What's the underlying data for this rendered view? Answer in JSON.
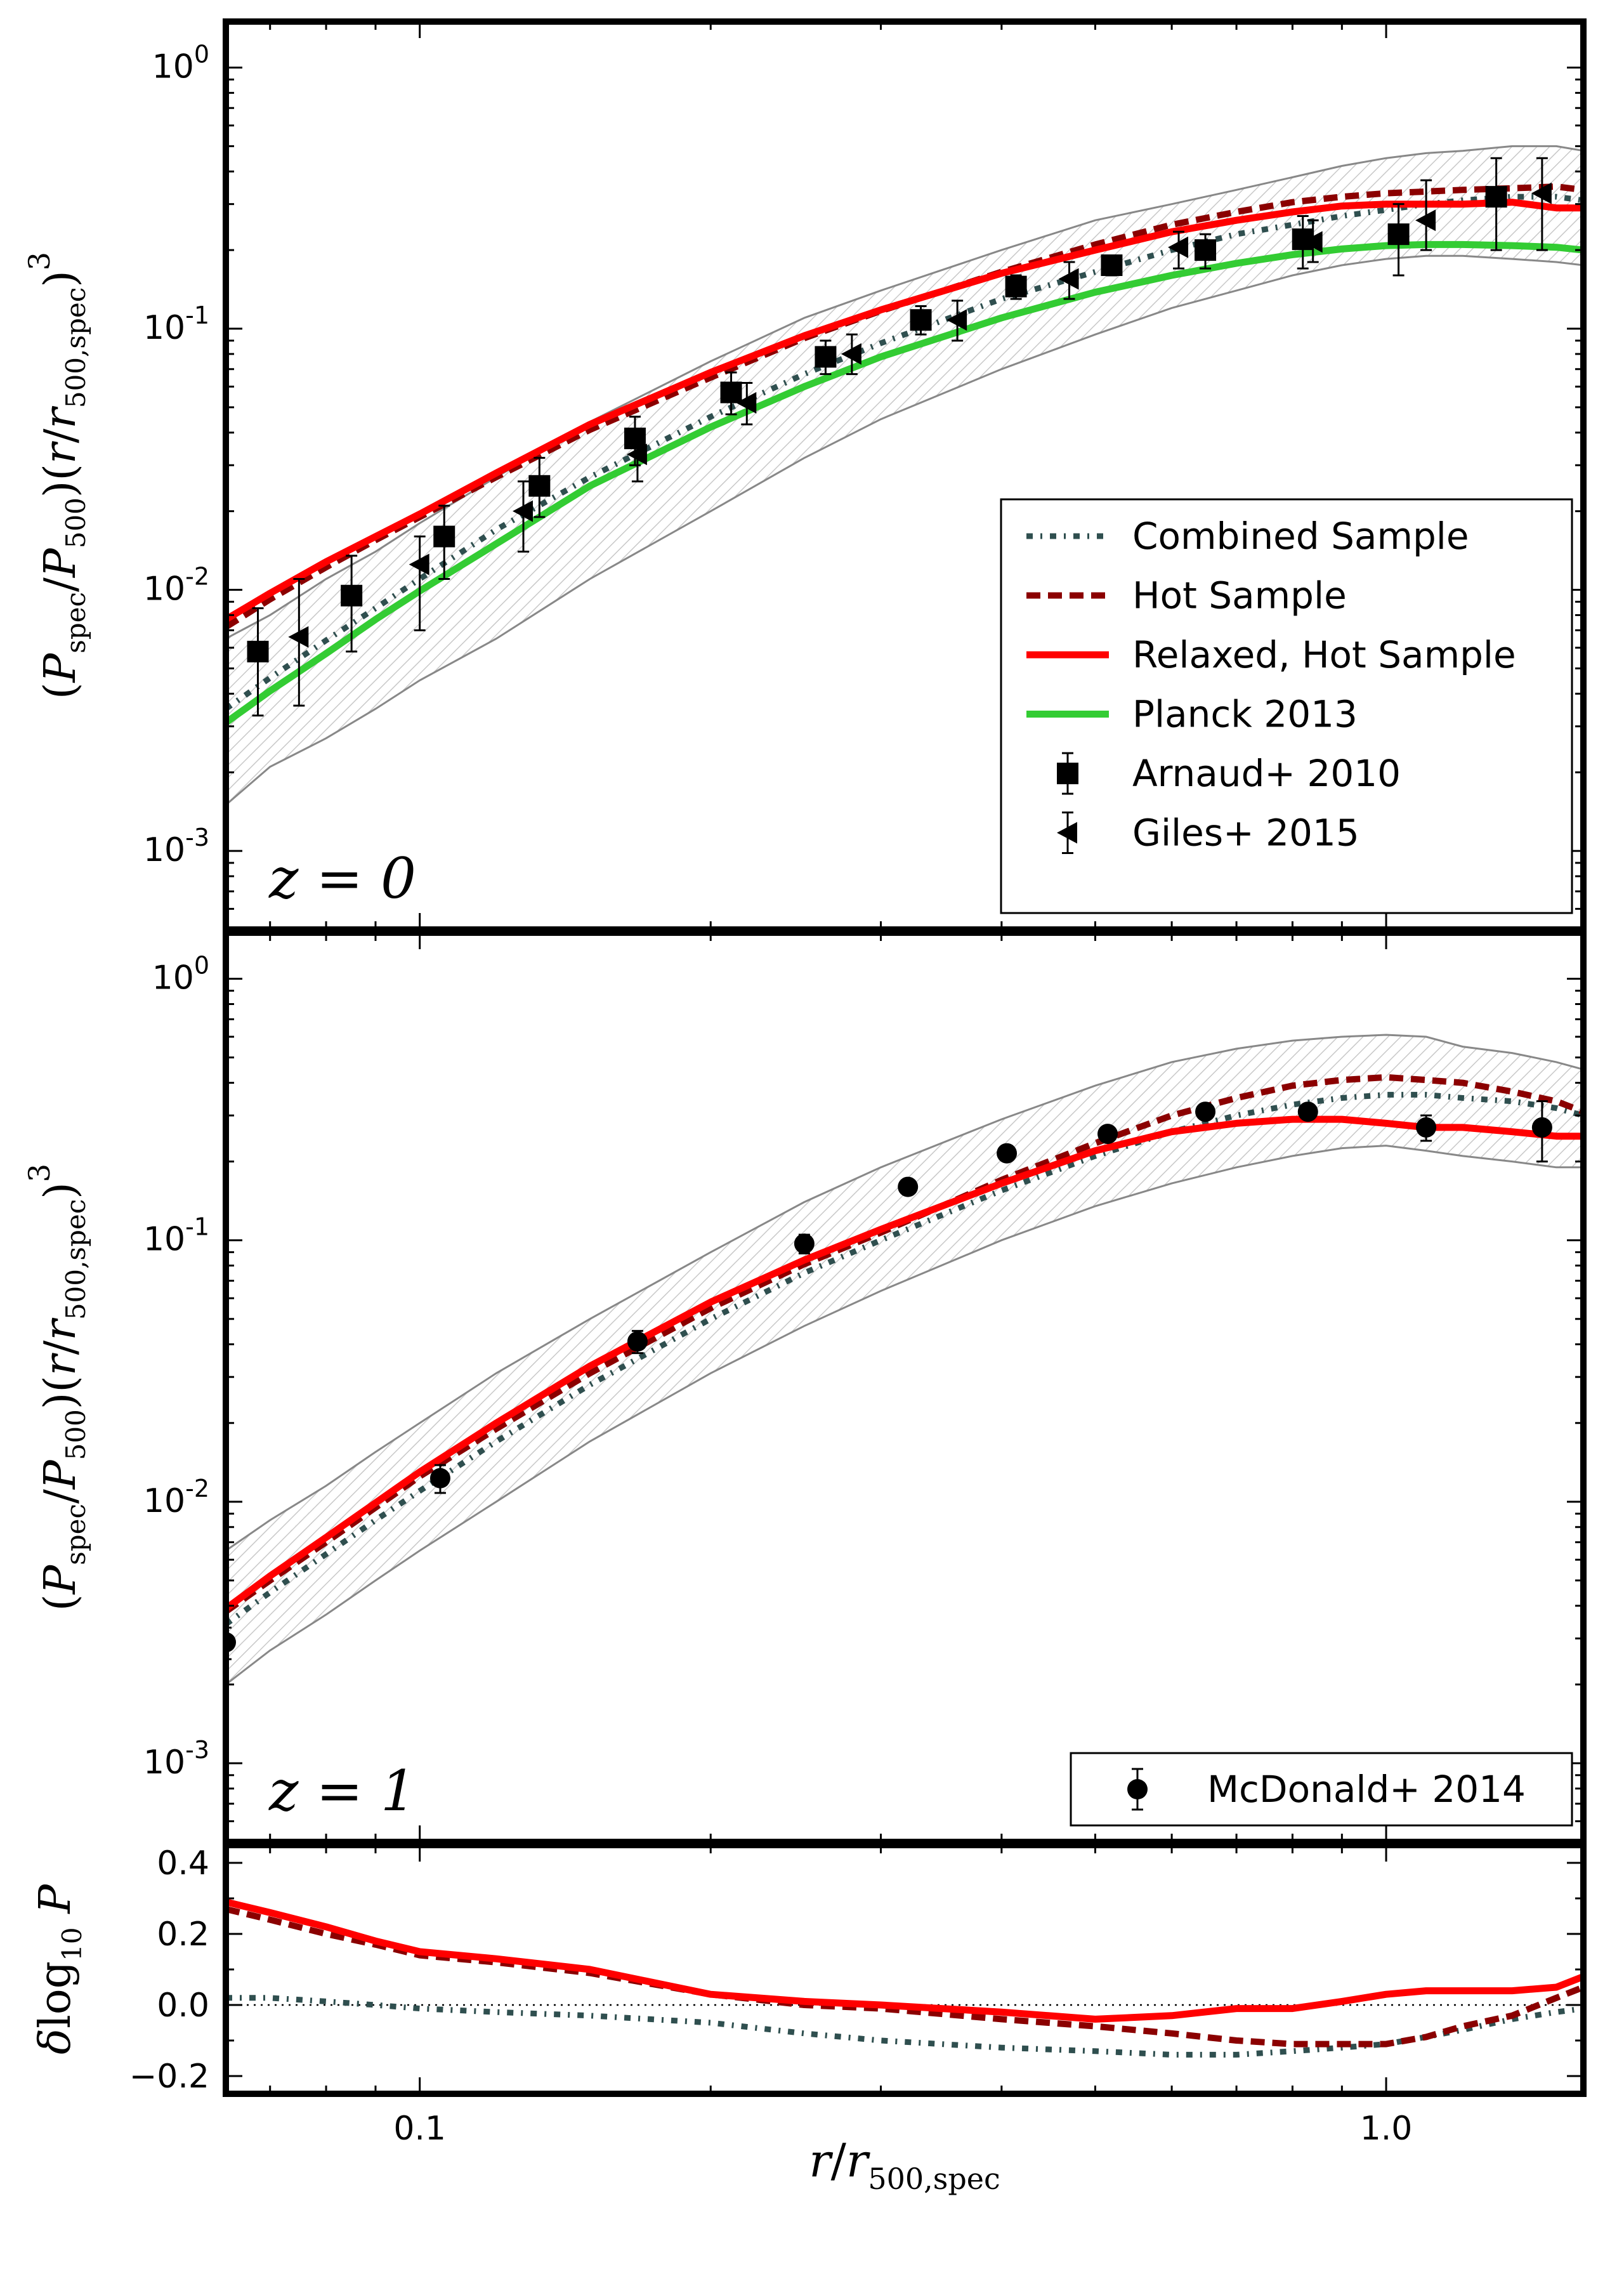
{
  "chart_data": [
    {
      "type": "line",
      "panel": "top",
      "panel_label": "z = 0",
      "ylabel": "(P_spec/P_500)(r/r_500,spec)^3",
      "xscale": "log",
      "yscale": "log",
      "xlim": [
        0.063,
        1.6
      ],
      "ylim": [
        0.0005,
        1.5
      ],
      "ytick_labels": [
        {
          "value": 1.0,
          "base": "10",
          "exp": "0"
        },
        {
          "value": 0.1,
          "base": "10",
          "exp": "-1"
        },
        {
          "value": 0.01,
          "base": "10",
          "exp": "-2"
        },
        {
          "value": 0.001,
          "base": "10",
          "exp": "-3"
        }
      ],
      "band": {
        "name": "scatter envelope",
        "x": [
          0.063,
          0.07,
          0.08,
          0.09,
          0.1,
          0.12,
          0.15,
          0.2,
          0.25,
          0.3,
          0.4,
          0.5,
          0.6,
          0.7,
          0.8,
          0.9,
          1.0,
          1.1,
          1.2,
          1.35,
          1.5,
          1.6
        ],
        "upper": [
          0.0065,
          0.008,
          0.011,
          0.014,
          0.018,
          0.027,
          0.044,
          0.075,
          0.11,
          0.14,
          0.2,
          0.26,
          0.3,
          0.34,
          0.38,
          0.42,
          0.45,
          0.47,
          0.48,
          0.5,
          0.5,
          0.48
        ],
        "lower": [
          0.0015,
          0.0021,
          0.0027,
          0.0035,
          0.0045,
          0.0065,
          0.011,
          0.02,
          0.032,
          0.045,
          0.07,
          0.095,
          0.12,
          0.14,
          0.16,
          0.175,
          0.185,
          0.19,
          0.19,
          0.185,
          0.18,
          0.175
        ]
      },
      "series": [
        {
          "name": "Combined Sample",
          "style": "dashdot",
          "color": "#2f4f4f",
          "x": [
            0.063,
            0.07,
            0.08,
            0.09,
            0.1,
            0.12,
            0.15,
            0.2,
            0.25,
            0.3,
            0.4,
            0.5,
            0.6,
            0.7,
            0.8,
            0.9,
            1.0,
            1.1,
            1.2,
            1.35,
            1.5,
            1.6
          ],
          "y": [
            0.0035,
            0.0046,
            0.0064,
            0.0085,
            0.011,
            0.017,
            0.027,
            0.046,
            0.067,
            0.088,
            0.13,
            0.165,
            0.2,
            0.23,
            0.25,
            0.27,
            0.285,
            0.3,
            0.31,
            0.32,
            0.32,
            0.31
          ]
        },
        {
          "name": "Hot Sample",
          "style": "dashed",
          "color": "#8b0000",
          "x": [
            0.063,
            0.07,
            0.08,
            0.09,
            0.1,
            0.12,
            0.15,
            0.2,
            0.25,
            0.3,
            0.4,
            0.5,
            0.6,
            0.7,
            0.8,
            0.9,
            1.0,
            1.1,
            1.2,
            1.35,
            1.5,
            1.6
          ],
          "y": [
            0.0072,
            0.0092,
            0.0122,
            0.0155,
            0.019,
            0.027,
            0.041,
            0.065,
            0.092,
            0.117,
            0.165,
            0.21,
            0.25,
            0.28,
            0.305,
            0.32,
            0.33,
            0.335,
            0.34,
            0.345,
            0.35,
            0.34
          ]
        },
        {
          "name": "Relaxed, Hot Sample",
          "style": "solid",
          "color": "#ff0000",
          "x": [
            0.063,
            0.07,
            0.08,
            0.09,
            0.1,
            0.12,
            0.15,
            0.2,
            0.25,
            0.3,
            0.4,
            0.5,
            0.6,
            0.7,
            0.8,
            0.9,
            1.0,
            1.1,
            1.2,
            1.35,
            1.5,
            1.6
          ],
          "y": [
            0.0077,
            0.0097,
            0.0128,
            0.016,
            0.0195,
            0.028,
            0.043,
            0.068,
            0.094,
            0.118,
            0.163,
            0.2,
            0.235,
            0.26,
            0.28,
            0.295,
            0.3,
            0.3,
            0.3,
            0.305,
            0.29,
            0.29
          ]
        },
        {
          "name": "Planck 2013",
          "style": "solid",
          "color": "#33cc33",
          "x": [
            0.063,
            0.07,
            0.08,
            0.09,
            0.1,
            0.12,
            0.15,
            0.2,
            0.25,
            0.3,
            0.4,
            0.5,
            0.6,
            0.7,
            0.8,
            0.9,
            1.0,
            1.1,
            1.2,
            1.35,
            1.5,
            1.6
          ],
          "y": [
            0.0031,
            0.0041,
            0.0057,
            0.0077,
            0.0099,
            0.015,
            0.025,
            0.042,
            0.06,
            0.078,
            0.11,
            0.138,
            0.16,
            0.178,
            0.192,
            0.202,
            0.208,
            0.21,
            0.21,
            0.208,
            0.205,
            0.2
          ]
        }
      ],
      "points": [
        {
          "name": "Arnaud+ 2010",
          "marker": "square",
          "x": [
            0.068,
            0.085,
            0.106,
            0.133,
            0.167,
            0.21,
            0.263,
            0.33,
            0.414,
            0.52,
            0.65,
            0.82,
            1.03,
            1.3
          ],
          "y": [
            0.0058,
            0.0095,
            0.016,
            0.025,
            0.038,
            0.057,
            0.078,
            0.108,
            0.145,
            0.175,
            0.2,
            0.22,
            0.23,
            0.32
          ],
          "err_low": [
            0.0033,
            0.0058,
            0.011,
            0.019,
            0.03,
            0.047,
            0.067,
            0.095,
            0.13,
            0.16,
            0.17,
            0.17,
            0.16,
            0.2
          ],
          "err_high": [
            0.0085,
            0.0135,
            0.021,
            0.032,
            0.046,
            0.068,
            0.09,
            0.122,
            0.16,
            0.19,
            0.23,
            0.27,
            0.3,
            0.45
          ]
        },
        {
          "name": "Giles+ 2015",
          "marker": "triangle-left",
          "x": [
            0.075,
            0.1,
            0.128,
            0.168,
            0.218,
            0.28,
            0.36,
            0.47,
            0.61,
            0.84,
            1.1,
            1.45
          ],
          "y": [
            0.0066,
            0.0125,
            0.02,
            0.033,
            0.052,
            0.08,
            0.108,
            0.155,
            0.205,
            0.215,
            0.26,
            0.33
          ],
          "err_low": [
            0.0036,
            0.007,
            0.014,
            0.026,
            0.043,
            0.067,
            0.09,
            0.13,
            0.17,
            0.18,
            0.2,
            0.2
          ],
          "err_high": [
            0.011,
            0.016,
            0.026,
            0.04,
            0.062,
            0.095,
            0.128,
            0.18,
            0.235,
            0.26,
            0.37,
            0.45
          ]
        }
      ],
      "legend": {
        "placement": "lower-right",
        "entries": [
          "Combined Sample",
          "Hot Sample",
          "Relaxed, Hot Sample",
          "Planck 2013",
          "Arnaud+ 2010",
          "Giles+ 2015"
        ]
      }
    },
    {
      "type": "line",
      "panel": "middle",
      "panel_label": "z = 1",
      "ylabel": "(P_spec/P_500)(r/r_500,spec)^3",
      "xscale": "log",
      "yscale": "log",
      "xlim": [
        0.063,
        1.6
      ],
      "ylim": [
        0.0005,
        1.5
      ],
      "ytick_labels": [
        {
          "value": 1.0,
          "base": "10",
          "exp": "0"
        },
        {
          "value": 0.1,
          "base": "10",
          "exp": "-1"
        },
        {
          "value": 0.01,
          "base": "10",
          "exp": "-2"
        },
        {
          "value": 0.001,
          "base": "10",
          "exp": "-3"
        }
      ],
      "band": {
        "name": "scatter envelope",
        "x": [
          0.063,
          0.07,
          0.08,
          0.09,
          0.1,
          0.12,
          0.15,
          0.2,
          0.25,
          0.3,
          0.4,
          0.5,
          0.6,
          0.7,
          0.8,
          0.9,
          1.0,
          1.1,
          1.2,
          1.35,
          1.5,
          1.6
        ],
        "upper": [
          0.0065,
          0.0085,
          0.0115,
          0.0155,
          0.02,
          0.031,
          0.05,
          0.09,
          0.14,
          0.19,
          0.29,
          0.39,
          0.48,
          0.54,
          0.58,
          0.6,
          0.61,
          0.6,
          0.55,
          0.52,
          0.48,
          0.45
        ],
        "lower": [
          0.002,
          0.0027,
          0.0037,
          0.005,
          0.0065,
          0.01,
          0.017,
          0.031,
          0.047,
          0.064,
          0.1,
          0.135,
          0.165,
          0.19,
          0.21,
          0.225,
          0.23,
          0.22,
          0.21,
          0.2,
          0.19,
          0.19
        ]
      },
      "series": [
        {
          "name": "Combined Sample",
          "style": "dashdot",
          "color": "#2f4f4f",
          "x": [
            0.063,
            0.07,
            0.08,
            0.09,
            0.1,
            0.12,
            0.15,
            0.2,
            0.25,
            0.3,
            0.4,
            0.5,
            0.6,
            0.7,
            0.8,
            0.9,
            1.0,
            1.1,
            1.2,
            1.35,
            1.5,
            1.6
          ],
          "y": [
            0.0034,
            0.0045,
            0.0063,
            0.0085,
            0.011,
            0.017,
            0.028,
            0.05,
            0.075,
            0.1,
            0.155,
            0.21,
            0.26,
            0.3,
            0.33,
            0.35,
            0.36,
            0.36,
            0.35,
            0.34,
            0.32,
            0.3
          ]
        },
        {
          "name": "Hot Sample",
          "style": "dashed",
          "color": "#8b0000",
          "x": [
            0.063,
            0.07,
            0.08,
            0.09,
            0.1,
            0.12,
            0.15,
            0.2,
            0.25,
            0.3,
            0.4,
            0.5,
            0.6,
            0.7,
            0.8,
            0.9,
            1.0,
            1.1,
            1.2,
            1.35,
            1.5,
            1.6
          ],
          "y": [
            0.0038,
            0.005,
            0.007,
            0.0095,
            0.0125,
            0.019,
            0.031,
            0.055,
            0.081,
            0.107,
            0.17,
            0.235,
            0.3,
            0.35,
            0.39,
            0.41,
            0.42,
            0.41,
            0.4,
            0.37,
            0.34,
            0.31
          ]
        },
        {
          "name": "Relaxed, Hot Sample",
          "style": "solid",
          "color": "#ff0000",
          "x": [
            0.063,
            0.07,
            0.08,
            0.09,
            0.1,
            0.12,
            0.15,
            0.2,
            0.25,
            0.3,
            0.4,
            0.5,
            0.6,
            0.7,
            0.8,
            0.9,
            1.0,
            1.1,
            1.2,
            1.35,
            1.5,
            1.6
          ],
          "y": [
            0.0039,
            0.0052,
            0.0073,
            0.0099,
            0.013,
            0.02,
            0.033,
            0.058,
            0.084,
            0.11,
            0.165,
            0.22,
            0.26,
            0.28,
            0.29,
            0.29,
            0.28,
            0.27,
            0.27,
            0.26,
            0.25,
            0.25
          ]
        }
      ],
      "points": [
        {
          "name": "McDonald+ 2014",
          "marker": "circle",
          "x": [
            0.063,
            0.105,
            0.168,
            0.25,
            0.32,
            0.405,
            0.515,
            0.65,
            0.83,
            1.1,
            1.45
          ],
          "y": [
            0.0029,
            0.0123,
            0.041,
            0.097,
            0.16,
            0.215,
            0.255,
            0.31,
            0.31,
            0.27,
            0.27
          ],
          "err_low": [
            0.0025,
            0.0108,
            0.037,
            0.089,
            0.15,
            0.205,
            0.24,
            0.295,
            0.295,
            0.24,
            0.2
          ],
          "err_high": [
            0.0033,
            0.0138,
            0.045,
            0.105,
            0.17,
            0.225,
            0.27,
            0.325,
            0.325,
            0.3,
            0.34
          ]
        }
      ],
      "legend": {
        "placement": "lower-right",
        "entries": [
          "McDonald+ 2014"
        ]
      }
    },
    {
      "type": "line",
      "panel": "bottom",
      "ylabel": "δlog10 P",
      "xlabel": "r/r_500,spec",
      "xscale": "log",
      "xlim": [
        0.063,
        1.6
      ],
      "ylim": [
        -0.25,
        0.45
      ],
      "yticks": [
        -0.2,
        0.0,
        0.2,
        0.4
      ],
      "ytick_labels": [
        "−0.2",
        "0.0",
        "0.2",
        "0.4"
      ],
      "xticks": [
        0.1,
        1.0
      ],
      "xtick_labels": [
        "0.1",
        "1.0"
      ],
      "reference_line": 0.0,
      "series": [
        {
          "name": "Combined Sample",
          "style": "dashdot",
          "color": "#2f4f4f",
          "x": [
            0.063,
            0.07,
            0.08,
            0.09,
            0.1,
            0.12,
            0.15,
            0.2,
            0.25,
            0.3,
            0.4,
            0.5,
            0.6,
            0.7,
            0.8,
            0.9,
            1.0,
            1.1,
            1.2,
            1.35,
            1.5,
            1.6
          ],
          "y": [
            0.02,
            0.02,
            0.01,
            0.0,
            -0.01,
            -0.02,
            -0.03,
            -0.05,
            -0.08,
            -0.1,
            -0.12,
            -0.13,
            -0.14,
            -0.14,
            -0.13,
            -0.12,
            -0.11,
            -0.09,
            -0.07,
            -0.04,
            -0.02,
            -0.01
          ]
        },
        {
          "name": "Hot Sample",
          "style": "dashed",
          "color": "#8b0000",
          "x": [
            0.063,
            0.07,
            0.08,
            0.09,
            0.1,
            0.12,
            0.15,
            0.2,
            0.25,
            0.3,
            0.4,
            0.5,
            0.6,
            0.7,
            0.8,
            0.9,
            1.0,
            1.1,
            1.2,
            1.35,
            1.5,
            1.6
          ],
          "y": [
            0.27,
            0.24,
            0.2,
            0.17,
            0.14,
            0.12,
            0.09,
            0.03,
            0.0,
            -0.01,
            -0.04,
            -0.06,
            -0.08,
            -0.1,
            -0.11,
            -0.11,
            -0.11,
            -0.09,
            -0.06,
            -0.03,
            0.02,
            0.05
          ]
        },
        {
          "name": "Relaxed, Hot Sample",
          "style": "solid",
          "color": "#ff0000",
          "x": [
            0.063,
            0.07,
            0.08,
            0.09,
            0.1,
            0.12,
            0.15,
            0.2,
            0.25,
            0.3,
            0.4,
            0.5,
            0.6,
            0.7,
            0.8,
            0.9,
            1.0,
            1.1,
            1.2,
            1.35,
            1.5,
            1.6
          ],
          "y": [
            0.29,
            0.26,
            0.22,
            0.18,
            0.15,
            0.13,
            0.1,
            0.03,
            0.01,
            0.0,
            -0.02,
            -0.04,
            -0.03,
            -0.01,
            -0.01,
            0.01,
            0.03,
            0.04,
            0.04,
            0.04,
            0.05,
            0.08
          ]
        }
      ]
    }
  ]
}
